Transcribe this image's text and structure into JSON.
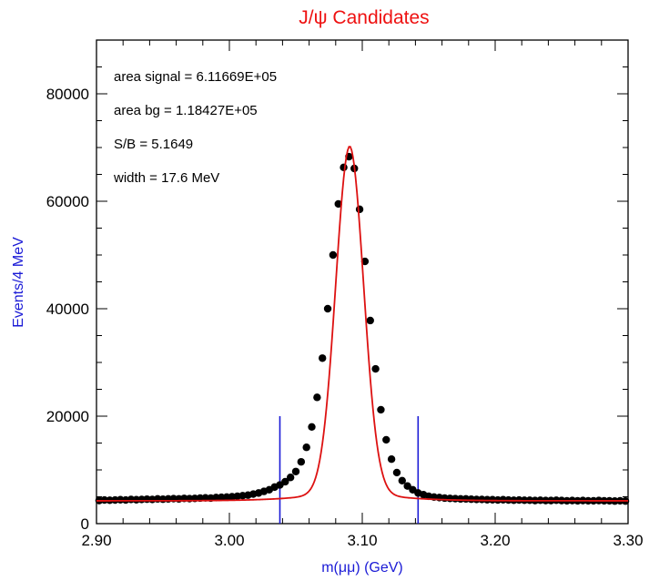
{
  "chart_data": {
    "type": "scatter",
    "title": "J/ψ Candidates",
    "xlabel": "m(μμ) (GeV)",
    "ylabel": "Events/4 MeV",
    "xlim": [
      2.9,
      3.3
    ],
    "ylim": [
      0,
      90000
    ],
    "x_ticks": [
      2.9,
      3.0,
      3.1,
      3.2,
      3.3
    ],
    "x_tick_labels": [
      "2.90",
      "3.00",
      "3.10",
      "3.20",
      "3.30"
    ],
    "y_ticks": [
      0,
      20000,
      40000,
      60000,
      80000
    ],
    "y_tick_labels": [
      "0",
      "20000",
      "40000",
      "60000",
      "80000"
    ],
    "grid": false,
    "annotations": [
      "area signal = 6.11669E+05",
      "area bg = 1.18427E+05",
      "S/B =  5.1649",
      "width = 17.6 MeV"
    ],
    "colors": {
      "title": "#ee1111",
      "fit": "#dd1111",
      "axis_titles": "#1a1ad6",
      "window_lines": "#1a1ad6",
      "points": "#000000"
    },
    "series": [
      {
        "type": "scatter",
        "x": [
          2.902,
          2.906,
          2.91,
          2.914,
          2.918,
          2.922,
          2.926,
          2.93,
          2.934,
          2.938,
          2.942,
          2.946,
          2.95,
          2.954,
          2.958,
          2.962,
          2.966,
          2.97,
          2.974,
          2.978,
          2.982,
          2.986,
          2.99,
          2.994,
          2.998,
          3.002,
          3.006,
          3.01,
          3.014,
          3.018,
          3.022,
          3.026,
          3.03,
          3.034,
          3.038,
          3.042,
          3.046,
          3.05,
          3.054,
          3.058,
          3.062,
          3.066,
          3.07,
          3.074,
          3.078,
          3.082,
          3.086,
          3.09,
          3.094,
          3.098,
          3.102,
          3.106,
          3.11,
          3.114,
          3.118,
          3.122,
          3.126,
          3.13,
          3.134,
          3.138,
          3.142,
          3.146,
          3.15,
          3.154,
          3.158,
          3.162,
          3.166,
          3.17,
          3.174,
          3.178,
          3.182,
          3.186,
          3.19,
          3.194,
          3.198,
          3.202,
          3.206,
          3.21,
          3.214,
          3.218,
          3.222,
          3.226,
          3.23,
          3.234,
          3.238,
          3.242,
          3.246,
          3.25,
          3.254,
          3.258,
          3.262,
          3.266,
          3.27,
          3.274,
          3.278,
          3.282,
          3.286,
          3.29,
          3.294,
          3.298
        ],
        "y": [
          4300,
          4400,
          4350,
          4400,
          4450,
          4400,
          4500,
          4450,
          4500,
          4550,
          4500,
          4600,
          4550,
          4600,
          4650,
          4600,
          4700,
          4650,
          4700,
          4750,
          4800,
          4750,
          4850,
          4900,
          4950,
          5000,
          5100,
          5200,
          5300,
          5500,
          5700,
          6000,
          6300,
          6800,
          7200,
          7800,
          8600,
          9700,
          11500,
          14200,
          18000,
          23500,
          30800,
          40000,
          50000,
          59500,
          66300,
          68300,
          66100,
          58500,
          48800,
          37800,
          28800,
          21200,
          15600,
          12000,
          9500,
          8000,
          7000,
          6300,
          5700,
          5400,
          5100,
          4950,
          4850,
          4750,
          4700,
          4650,
          4600,
          4600,
          4550,
          4500,
          4500,
          4450,
          4450,
          4400,
          4450,
          4400,
          4350,
          4400,
          4350,
          4350,
          4300,
          4350,
          4300,
          4300,
          4350,
          4300,
          4250,
          4300,
          4250,
          4300,
          4250,
          4250,
          4300,
          4250,
          4250,
          4200,
          4250,
          4200
        ]
      },
      {
        "type": "line",
        "model": "gaussian+linear",
        "peak_x": 3.0905,
        "peak_height": 63500,
        "sigma": 0.0105,
        "background_start": 4250,
        "background_end": 4550
      }
    ],
    "mass_window": [
      3.038,
      3.142
    ],
    "mass_window_ymax": 20000
  }
}
